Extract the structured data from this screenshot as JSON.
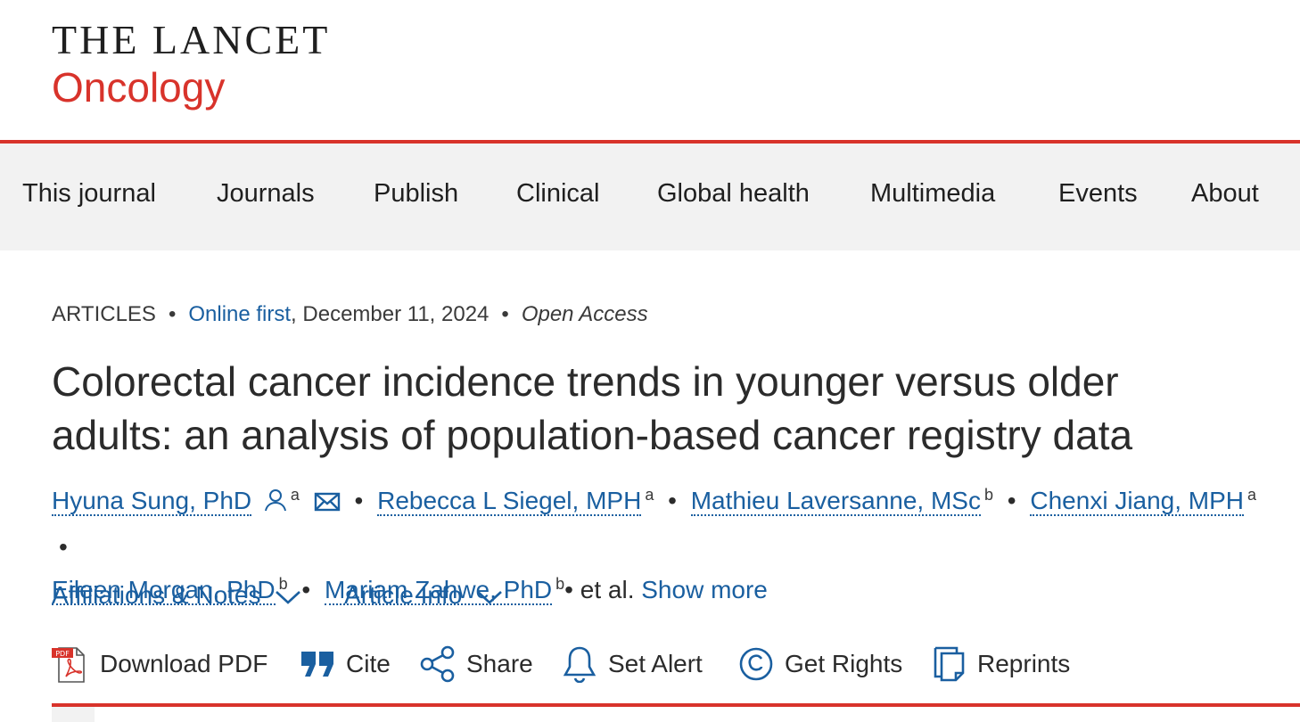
{
  "logo": {
    "top": "THE LANCET",
    "bottom": "Oncology"
  },
  "nav": {
    "items": [
      {
        "label": "This journal"
      },
      {
        "label": "Journals"
      },
      {
        "label": "Publish"
      },
      {
        "label": "Clinical"
      },
      {
        "label": "Global health"
      },
      {
        "label": "Multimedia"
      },
      {
        "label": "Events"
      },
      {
        "label": "About"
      }
    ]
  },
  "article": {
    "type": "ARTICLES",
    "status_link": "Online first",
    "date": ", December 11, 2024",
    "access": "Open Access",
    "title": "Colorectal cancer incidence trends in younger versus older adults: an analysis of population-based cancer registry data",
    "authors": [
      {
        "name": "Hyuna Sung, PhD",
        "affil": "a"
      },
      {
        "name": "Rebecca L Siegel, MPH",
        "affil": "a"
      },
      {
        "name": "Mathieu Laversanne, MSc",
        "affil": "b"
      },
      {
        "name": "Chenxi Jiang, MPH",
        "affil": "a"
      },
      {
        "name": "Eileen Morgan, PhD",
        "affil": "b"
      },
      {
        "name": "Mariam Zahwe, PhD",
        "affil": "b"
      }
    ],
    "et_al": "et al.",
    "show_more": "Show more",
    "affiliations_label": "Affiliations & Notes",
    "article_info_label": "Article Info"
  },
  "toolbar": {
    "download_pdf": "Download PDF",
    "pdf_badge": "PDF",
    "cite": "Cite",
    "share": "Share",
    "set_alert": "Set Alert",
    "get_rights": "Get Rights",
    "reprints": "Reprints"
  },
  "colors": {
    "brand_red": "#d8332b",
    "link_blue": "#1a5fa0",
    "nav_bg": "#f2f2f2"
  }
}
